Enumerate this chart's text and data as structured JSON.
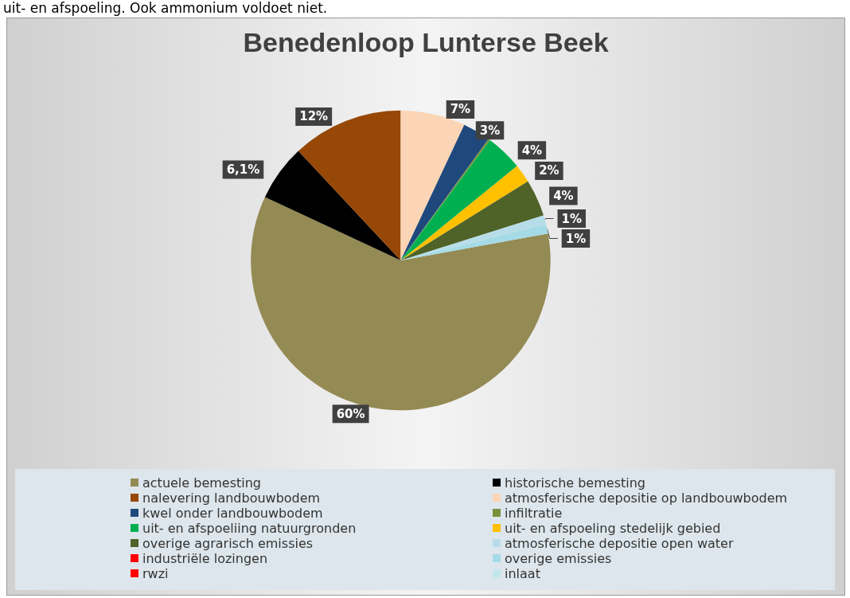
{
  "chart_data": {
    "type": "pie",
    "title": "Benedenloop Lunterse Beek",
    "annotations": [
      "uit- en afspoeling. Ook ammonium voldoet niet."
    ],
    "categories": [
      "actuele bemesting",
      "historische bemesting",
      "nalevering landbouwbodem",
      "atmosferische depositie op landbouwbodem",
      "kwel onder landbouwbodem",
      "infiltratie",
      "uit- en afspoeliing natuurgronden",
      "uit- en afspoeling stedelijk gebied",
      "overige agrarisch emissies",
      "atmosferische depositie open water",
      "industriële lozingen",
      "overige emissies",
      "rwzi",
      "inlaat"
    ],
    "values": [
      60,
      6.1,
      12,
      7,
      3,
      0.2,
      4,
      2,
      4,
      1,
      0,
      1,
      0,
      0
    ],
    "value_labels": [
      "60%",
      "6,1%",
      "12%",
      "7%",
      "3%",
      null,
      "4%",
      "2%",
      "4%",
      "1%",
      null,
      "1%",
      null,
      null
    ],
    "colors": [
      "#948a54",
      "#000000",
      "#974706",
      "#fbd5b5",
      "#1f497d",
      "#77933c",
      "#00b050",
      "#ffc000",
      "#4f6228",
      "#b7dee8",
      "#ff0000",
      "#a5dbe6",
      "#ff0000",
      "#c5e6ee"
    ],
    "legend": "bottom"
  }
}
